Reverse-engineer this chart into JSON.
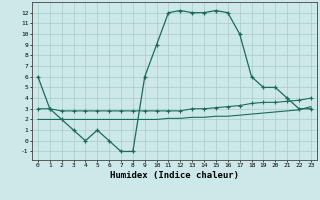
{
  "xlabel": "Humidex (Indice chaleur)",
  "background_color": "#cde8e8",
  "grid_color": "#aacccc",
  "line_color": "#1a6b5a",
  "xlim": [
    -0.5,
    23.5
  ],
  "ylim": [
    -1.8,
    13.0
  ],
  "xticks": [
    0,
    1,
    2,
    3,
    4,
    5,
    6,
    7,
    8,
    9,
    10,
    11,
    12,
    13,
    14,
    15,
    16,
    17,
    18,
    19,
    20,
    21,
    22,
    23
  ],
  "yticks": [
    -1,
    0,
    1,
    2,
    3,
    4,
    5,
    6,
    7,
    8,
    9,
    10,
    11,
    12
  ],
  "main_x": [
    0,
    1,
    2,
    3,
    4,
    5,
    6,
    7,
    8,
    9,
    10,
    11,
    12,
    13,
    14,
    15,
    16,
    17,
    18,
    19,
    20,
    21,
    22,
    23
  ],
  "main_y": [
    6,
    3,
    2,
    1,
    0,
    1,
    0,
    -1,
    -1,
    6,
    9,
    12,
    12.2,
    12,
    12,
    12.2,
    12,
    10,
    6,
    5,
    5,
    4,
    3,
    3
  ],
  "line2_x": [
    0,
    1,
    2,
    3,
    4,
    5,
    6,
    7,
    8,
    9,
    10,
    11,
    12,
    13,
    14,
    15,
    16,
    17,
    18,
    19,
    20,
    21,
    22,
    23
  ],
  "line2_y": [
    3,
    3,
    2.8,
    2.8,
    2.8,
    2.8,
    2.8,
    2.8,
    2.8,
    2.8,
    2.8,
    2.8,
    2.8,
    3,
    3.0,
    3.1,
    3.2,
    3.3,
    3.5,
    3.6,
    3.6,
    3.7,
    3.8,
    4.0
  ],
  "line3_x": [
    0,
    1,
    2,
    3,
    4,
    5,
    6,
    7,
    8,
    9,
    10,
    11,
    12,
    13,
    14,
    15,
    16,
    17,
    18,
    19,
    20,
    21,
    22,
    23
  ],
  "line3_y": [
    2,
    2,
    2,
    2,
    2,
    2,
    2,
    2,
    2,
    2,
    2,
    2.1,
    2.1,
    2.2,
    2.2,
    2.3,
    2.3,
    2.4,
    2.5,
    2.6,
    2.7,
    2.8,
    2.9,
    3.2
  ]
}
